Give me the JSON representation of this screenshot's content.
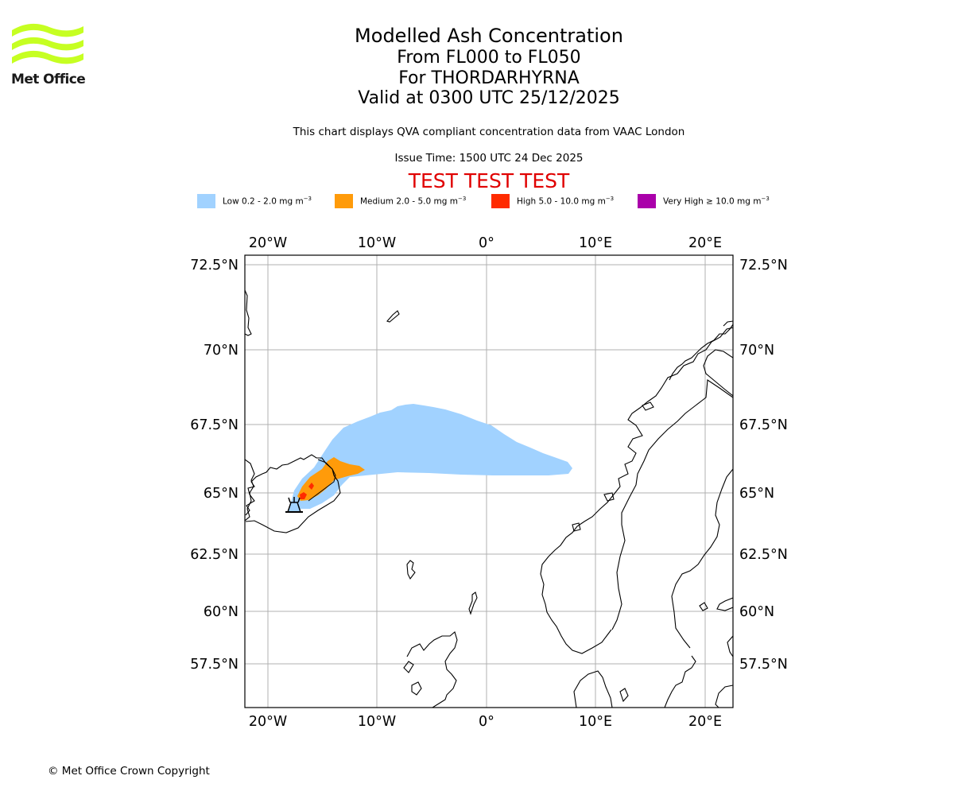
{
  "header": {
    "logo_text": "Met Office",
    "title": "Modelled Ash Concentration",
    "levels": "From FL000 to FL050",
    "volcano": "For THORDARHYRNA",
    "valid": "Valid at 0300 UTC 25/12/2025",
    "description": "This chart displays QVA compliant concentration data from VAAC London",
    "issue_time": "Issue Time: 1500 UTC 24 Dec 2025",
    "test_banner": "TEST TEST TEST"
  },
  "legend": {
    "items": [
      {
        "name": "low",
        "label": "Low 0.2 - 2.0 mg m",
        "unit_exp": "−3",
        "color": "#a1d2ff"
      },
      {
        "name": "medium",
        "label": "Medium 2.0 - 5.0 mg m",
        "unit_exp": "−3",
        "color": "#ff9b0a"
      },
      {
        "name": "high",
        "label": "High 5.0 - 10.0 mg m",
        "unit_exp": "−3",
        "color": "#ff2b00"
      },
      {
        "name": "very-high",
        "label": "Very High  ≥  10.0 mg m",
        "unit_exp": "−3",
        "color": "#aa00aa"
      }
    ]
  },
  "map": {
    "lon_ticks": [
      "20°W",
      "10°W",
      "0°",
      "10°E",
      "20°E"
    ],
    "lat_ticks": [
      "72.5°N",
      "70°N",
      "67.5°N",
      "65°N",
      "62.5°N",
      "60°N",
      "57.5°N"
    ],
    "grid_color": "#b0b0b0",
    "coast_color": "#000000",
    "volcano_marker": "volcano-icon"
  },
  "footer": {
    "copyright": "© Met Office Crown Copyright"
  }
}
